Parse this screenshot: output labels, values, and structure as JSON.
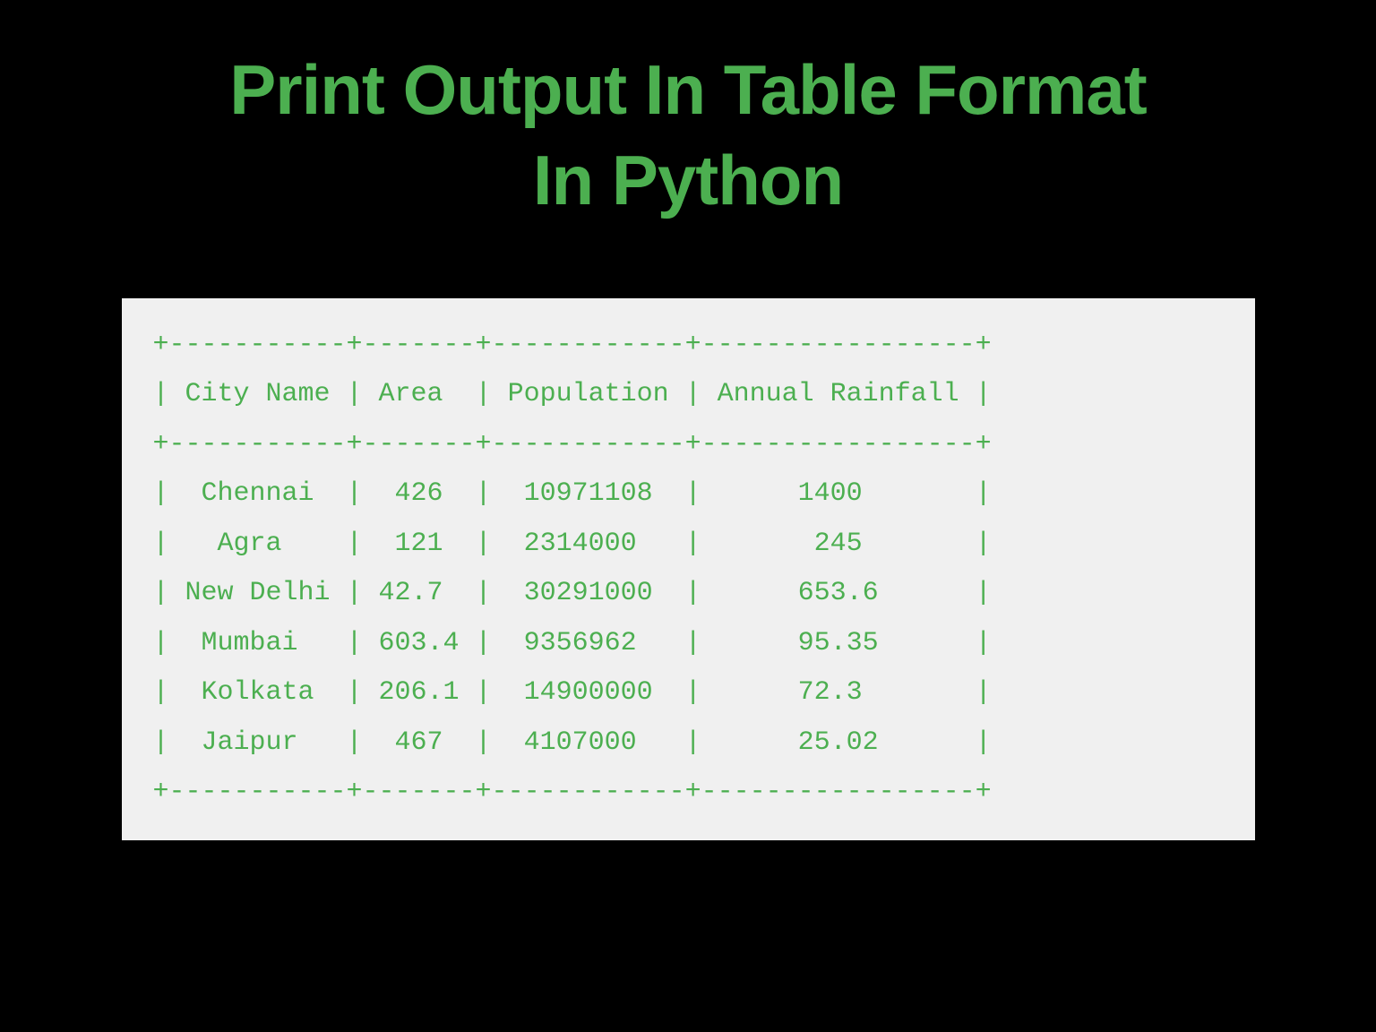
{
  "title": {
    "line1": "Print Output In Table Format",
    "line2": "In Python"
  },
  "table": {
    "type": "ascii_table",
    "text_color": "#4CAF50",
    "background_color": "#f0f0f0",
    "font_family": "Consolas",
    "font_size": 30,
    "columns": [
      {
        "name": "City Name",
        "width": 11
      },
      {
        "name": "Area",
        "width": 7
      },
      {
        "name": "Population",
        "width": 12
      },
      {
        "name": "Annual Rainfall",
        "width": 17
      }
    ],
    "rows": [
      {
        "city_name": "Chennai",
        "area": "426",
        "population": "10971108",
        "annual_rainfall": "1400"
      },
      {
        "city_name": "Agra",
        "area": "121",
        "population": "2314000",
        "annual_rainfall": "245"
      },
      {
        "city_name": "New Delhi",
        "area": "42.7",
        "population": "30291000",
        "annual_rainfall": "653.6"
      },
      {
        "city_name": "Mumbai",
        "area": "603.4",
        "population": "9356962",
        "annual_rainfall": "95.35"
      },
      {
        "city_name": "Kolkata",
        "area": "206.1",
        "population": "14900000",
        "annual_rainfall": "72.3"
      },
      {
        "city_name": "Jaipur",
        "area": "467",
        "population": "4107000",
        "annual_rainfall": "25.02"
      }
    ],
    "border_char_horizontal": "-",
    "border_char_vertical": "|",
    "border_char_corner": "+"
  },
  "page": {
    "background_color": "#000000",
    "title_color": "#4CAF50",
    "title_fontsize": 78,
    "title_fontweight": 900
  }
}
